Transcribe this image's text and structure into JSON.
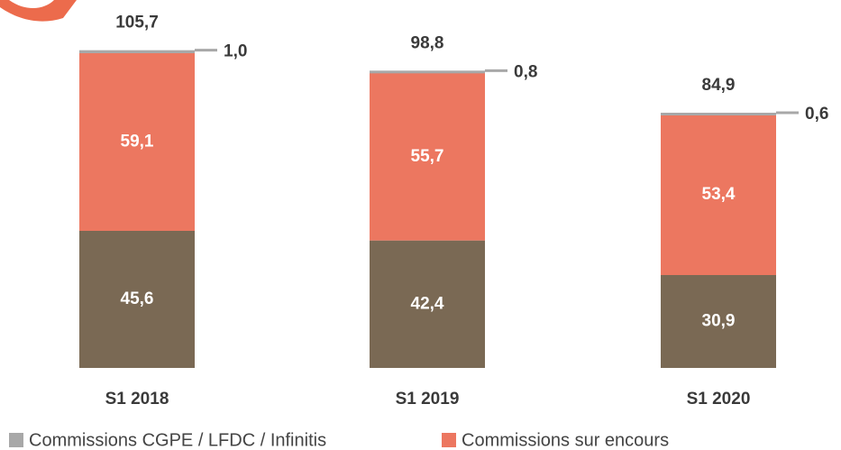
{
  "chart_data": {
    "type": "stacked_bar",
    "categories": [
      "S1 2018",
      "S1 2019",
      "S1 2020"
    ],
    "series": [
      {
        "color": "#7a6954",
        "values": [
          45.6,
          42.4,
          30.9
        ],
        "value_labels": [
          "45,6",
          "42,4",
          "30,9"
        ]
      },
      {
        "name": "Commissions sur encours",
        "color": "#ec7760",
        "values": [
          59.1,
          55.7,
          53.4
        ],
        "value_labels": [
          "59,1",
          "55,7",
          "53,4"
        ]
      },
      {
        "name": "Commissions CGPE / LFDC / Infinitis",
        "color": "#a8a8a8",
        "values": [
          1.0,
          0.8,
          0.6
        ],
        "value_labels": [
          "1,0",
          "0,8",
          "0,6"
        ]
      }
    ],
    "totals": [
      105.7,
      98.8,
      84.9
    ],
    "total_labels": [
      "105,7",
      "98,8",
      "84,9"
    ],
    "ylim": [
      0,
      120
    ]
  }
}
